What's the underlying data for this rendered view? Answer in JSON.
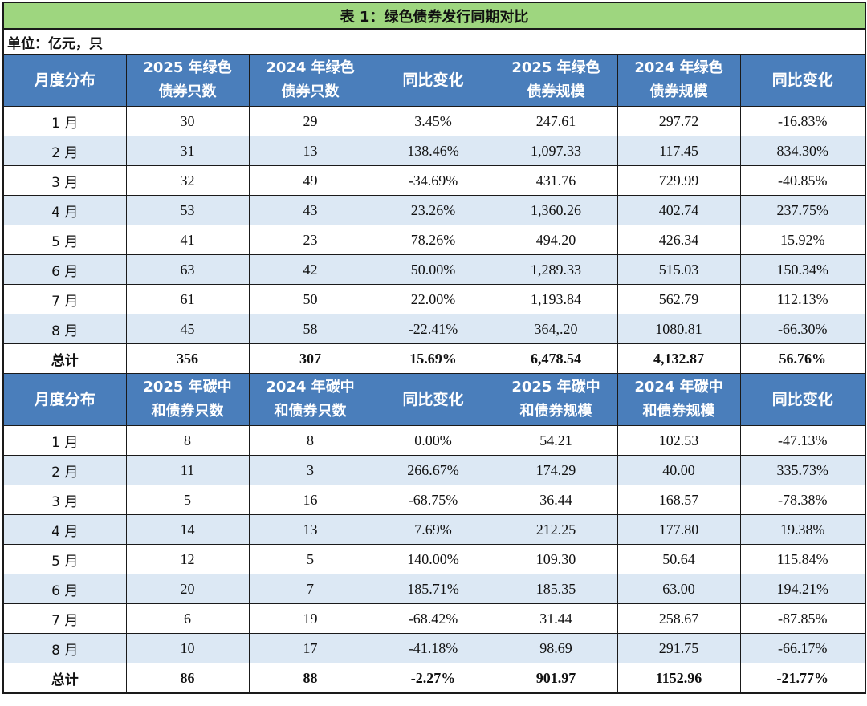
{
  "title": "表 1：绿色债券发行同期对比",
  "unit": "单位：亿元，只",
  "green": {
    "headers": [
      {
        "l1": "月度分布",
        "l2": ""
      },
      {
        "l1": "2025 年绿色",
        "l2": "债券只数"
      },
      {
        "l1": "2024 年绿色",
        "l2": "债券只数"
      },
      {
        "l1": "同比变化",
        "l2": ""
      },
      {
        "l1": "2025 年绿色",
        "l2": "债券规模"
      },
      {
        "l1": "2024 年绿色",
        "l2": "债券规模"
      },
      {
        "l1": "同比变化",
        "l2": ""
      }
    ],
    "rows": [
      [
        "1 月",
        "30",
        "29",
        "3.45%",
        "247.61",
        "297.72",
        "-16.83%"
      ],
      [
        "2 月",
        "31",
        "13",
        "138.46%",
        "1,097.33",
        "117.45",
        "834.30%"
      ],
      [
        "3 月",
        "32",
        "49",
        "-34.69%",
        "431.76",
        "729.99",
        "-40.85%"
      ],
      [
        "4 月",
        "53",
        "43",
        "23.26%",
        "1,360.26",
        "402.74",
        "237.75%"
      ],
      [
        "5 月",
        "41",
        "23",
        "78.26%",
        "494.20",
        "426.34",
        "15.92%"
      ],
      [
        "6 月",
        "63",
        "42",
        "50.00%",
        "1,289.33",
        "515.03",
        "150.34%"
      ],
      [
        "7 月",
        "61",
        "50",
        "22.00%",
        "1,193.84",
        "562.79",
        "112.13%"
      ],
      [
        "8 月",
        "45",
        "58",
        "-22.41%",
        "364,.20",
        "1080.81",
        "-66.30%"
      ]
    ],
    "total": [
      "总计",
      "356",
      "307",
      "15.69%",
      "6,478.54",
      "4,132.87",
      "56.76%"
    ]
  },
  "carbon": {
    "headers": [
      {
        "l1": "月度分布",
        "l2": ""
      },
      {
        "l1": "2025 年碳中",
        "l2": "和债券只数"
      },
      {
        "l1": "2024 年碳中",
        "l2": "和债券只数"
      },
      {
        "l1": "同比变化",
        "l2": ""
      },
      {
        "l1": "2025 年碳中",
        "l2": "和债券规模"
      },
      {
        "l1": "2024 年碳中",
        "l2": "和债券规模"
      },
      {
        "l1": "同比变化",
        "l2": ""
      }
    ],
    "rows": [
      [
        "1 月",
        "8",
        "8",
        "0.00%",
        "54.21",
        "102.53",
        "-47.13%"
      ],
      [
        "2 月",
        "11",
        "3",
        "266.67%",
        "174.29",
        "40.00",
        "335.73%"
      ],
      [
        "3 月",
        "5",
        "16",
        "-68.75%",
        "36.44",
        "168.57",
        "-78.38%"
      ],
      [
        "4 月",
        "14",
        "13",
        "7.69%",
        "212.25",
        "177.80",
        "19.38%"
      ],
      [
        "5 月",
        "12",
        "5",
        "140.00%",
        "109.30",
        "50.64",
        "115.84%"
      ],
      [
        "6 月",
        "20",
        "7",
        "185.71%",
        "185.35",
        "63.00",
        "194.21%"
      ],
      [
        "7 月",
        "6",
        "19",
        "-68.42%",
        "31.44",
        "258.67",
        "-87.85%"
      ],
      [
        "8 月",
        "10",
        "17",
        "-41.18%",
        "98.69",
        "291.75",
        "-66.17%"
      ]
    ],
    "total": [
      "总计",
      "86",
      "88",
      "-2.27%",
      "901.97",
      "1152.96",
      "-21.77%"
    ]
  },
  "colors": {
    "title_bg": "#9ed67f",
    "header_bg": "#4a7ebb",
    "stripe_bg": "#dce8f4"
  }
}
